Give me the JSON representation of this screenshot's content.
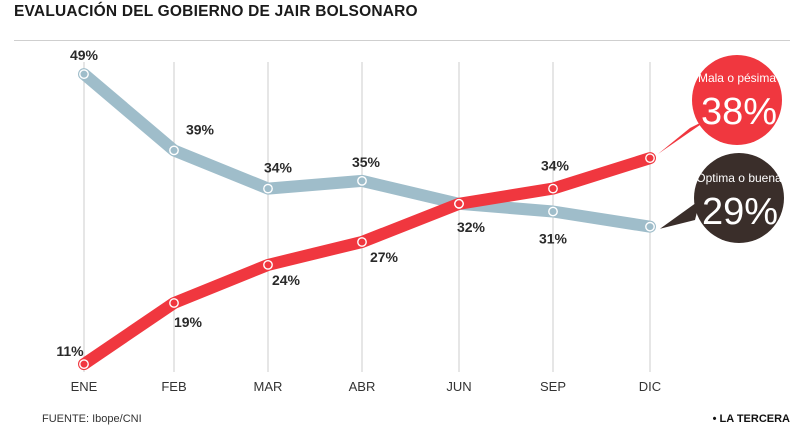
{
  "title": "EVALUACIÓN DEL GOBIERNO DE JAIR BOLSONARO",
  "source": "FUENTE: Ibope/CNI",
  "brand": "• LA TERCERA",
  "colors": {
    "mala": "#f0373f",
    "optima": "#9fbdca",
    "callout_dark": "#3a2e2a",
    "grid": "#cccccc"
  },
  "chart_data": {
    "type": "line",
    "categories": [
      "ENE",
      "FEB",
      "MAR",
      "ABR",
      "JUN",
      "SEP",
      "DIC"
    ],
    "ylim": [
      0,
      55
    ],
    "grid": "vertical",
    "series": [
      {
        "key": "optima",
        "values": [
          49,
          39,
          34,
          35,
          32,
          31,
          29
        ],
        "labels": [
          "49%",
          "39%",
          "34%",
          "35%",
          "32%",
          "31%",
          ""
        ]
      },
      {
        "key": "mala",
        "values": [
          11,
          19,
          24,
          27,
          32,
          34,
          38
        ],
        "labels": [
          "11%",
          "19%",
          "24%",
          "27%",
          "",
          "34%",
          ""
        ]
      }
    ],
    "callouts": {
      "mala": {
        "label": "Mala o pésima",
        "value": "38%"
      },
      "optima": {
        "label": "Óptima o buena",
        "value": "29%"
      }
    }
  }
}
